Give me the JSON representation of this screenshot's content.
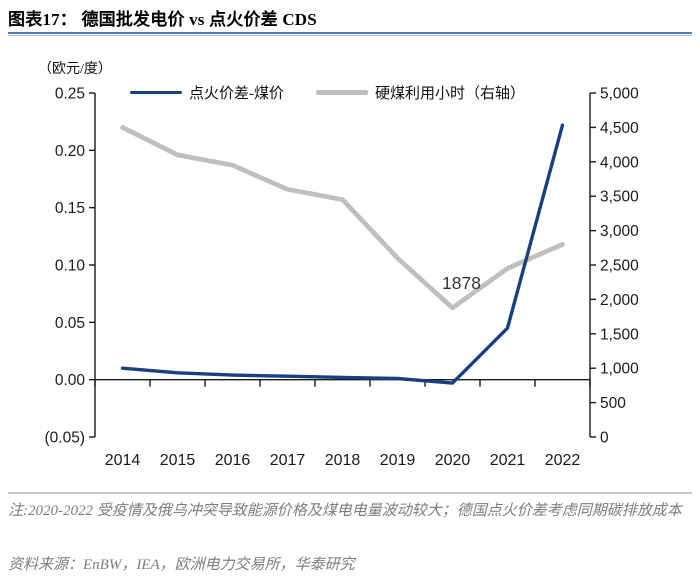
{
  "header": {
    "title": "图表17：  德国批发电价 vs 点火价差 CDS"
  },
  "chart_data": {
    "type": "line",
    "title": "德国批发电价 vs 点火价差 CDS",
    "unit_label": "（欧元/度）",
    "categories": [
      "2014",
      "2015",
      "2016",
      "2017",
      "2018",
      "2019",
      "2020",
      "2021",
      "2022"
    ],
    "series": [
      {
        "name": "点火价差-煤价",
        "axis": "left",
        "color": "#17407E",
        "stroke_width": 3.4,
        "values": [
          0.01,
          0.006,
          0.004,
          0.003,
          0.002,
          0.001,
          -0.003,
          0.045,
          0.222
        ]
      },
      {
        "name": "硬煤利用小时（右轴）",
        "axis": "right",
        "color": "#BFBFBF",
        "stroke_width": 4.8,
        "values": [
          4500,
          4100,
          3950,
          3600,
          3450,
          2600,
          1878,
          2450,
          2800
        ]
      }
    ],
    "left_axis": {
      "min": -0.05,
      "max": 0.25,
      "tick_labels": [
        "0.25",
        "0.20",
        "0.15",
        "0.10",
        "0.05",
        "0.00",
        "(0.05)"
      ]
    },
    "right_axis": {
      "min": 0,
      "max": 5000,
      "tick_labels": [
        "5,000",
        "4,500",
        "4,000",
        "3,500",
        "3,000",
        "2,500",
        "2,000",
        "1,500",
        "1,000",
        "500",
        "0"
      ]
    },
    "annotation": {
      "text": "1878",
      "series": "硬煤利用小时（右轴）",
      "category": "2020",
      "value": 1878
    },
    "legend_position": "top",
    "grid": false
  },
  "footer": {
    "note": "注:2020-2022 受疫情及俄乌冲突导致能源价格及煤电电量波动较大；德国点火价差考虑同期碳排放成本",
    "source": "资料来源：EnBW，IEA，欧洲电力交易所，华泰研究"
  },
  "colors": {
    "title_rule": "#4E7CB8",
    "axis": "#1a1a1a",
    "tick_text": "#1a1a1a",
    "annotation_text": "#333333",
    "note_text": "#7d7d7d"
  }
}
